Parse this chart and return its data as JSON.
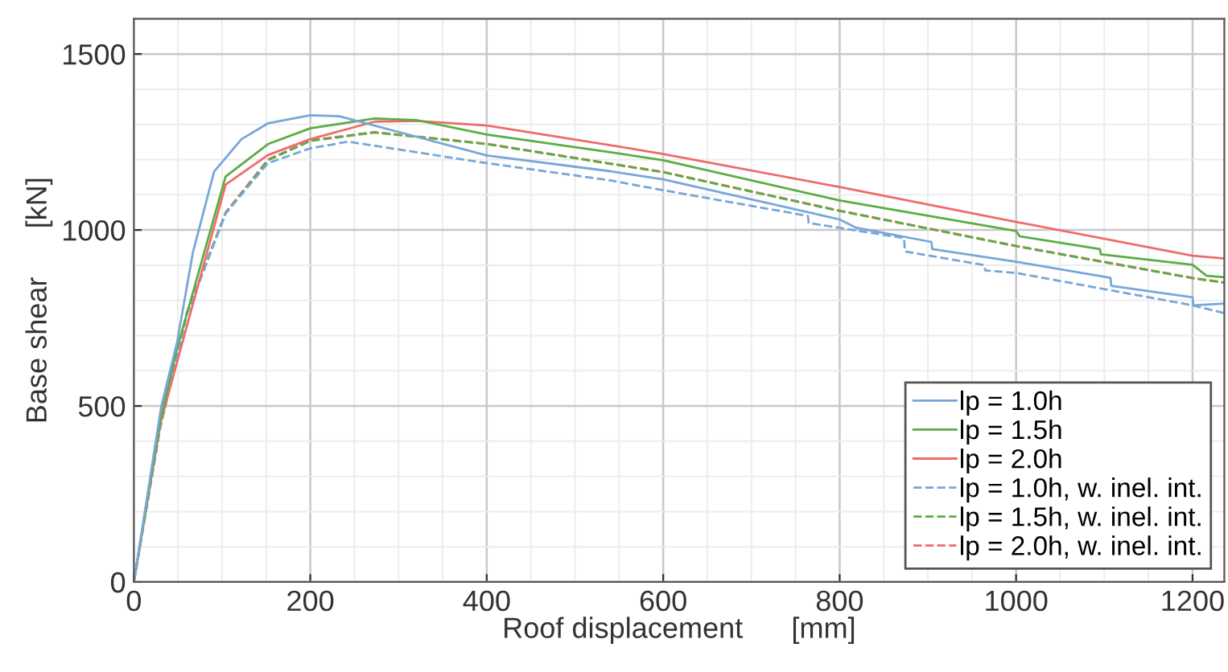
{
  "chart_data": {
    "type": "line",
    "xlabel": "Roof displacement      [mm]",
    "ylabel": "Base shear      [kN]",
    "xlim": [
      0,
      1236
    ],
    "ylim": [
      0,
      1600
    ],
    "xticks": [
      0,
      200,
      400,
      600,
      800,
      1000,
      1200
    ],
    "yticks": [
      0,
      500,
      1000,
      1500
    ],
    "grid": true,
    "legend": "bottom right",
    "series": [
      {
        "name": "lp = 1.0h",
        "color": "#77a7d9",
        "line_style": "solid",
        "x": [
          0,
          31,
          49,
          67,
          91,
          122,
          152,
          200,
          233,
          400,
          540,
          600,
          800,
          818,
          904,
          905,
          1000,
          1107,
          1108,
          1200,
          1201,
          1236
        ],
        "values": [
          0,
          498,
          681,
          937,
          1166,
          1258,
          1303,
          1326,
          1323,
          1212,
          1167,
          1144,
          1030,
          1007,
          966,
          946,
          910,
          864,
          841,
          809,
          786,
          791
        ]
      },
      {
        "name": "lp = 1.5h",
        "color": "#5aad44",
        "line_style": "solid",
        "x": [
          0,
          30,
          49,
          104,
          152,
          200,
          273,
          321,
          400,
          540,
          600,
          800,
          1000,
          1004,
          1095,
          1096,
          1200,
          1216,
          1236
        ],
        "values": [
          0,
          460,
          663,
          1152,
          1244,
          1289,
          1317,
          1312,
          1271,
          1221,
          1198,
          1084,
          997,
          982,
          946,
          931,
          901,
          870,
          866
        ]
      },
      {
        "name": "lp = 2.0h",
        "color": "#ef6b6b",
        "line_style": "solid",
        "x": [
          0,
          30,
          55,
          104,
          152,
          200,
          273,
          320,
          400,
          540,
          600,
          800,
          1000,
          1200,
          1236
        ],
        "values": [
          0,
          450,
          680,
          1129,
          1213,
          1258,
          1308,
          1310,
          1297,
          1241,
          1216,
          1122,
          1023,
          927,
          919
        ]
      },
      {
        "name": "lp = 1.0h, w. inel. int.",
        "color": "#77a7d9",
        "line_style": "dashed",
        "x": [
          0,
          30,
          60,
          104,
          152,
          200,
          243,
          400,
          540,
          600,
          764,
          765,
          873,
          874,
          964,
          965,
          1000,
          1200,
          1236
        ],
        "values": [
          0,
          440,
          760,
          1047,
          1190,
          1232,
          1251,
          1190,
          1141,
          1113,
          1040,
          1020,
          977,
          939,
          900,
          885,
          878,
          786,
          764
        ]
      },
      {
        "name": "lp = 1.5h, w. inel. int.",
        "color": "#5aad44",
        "line_style": "dashed",
        "x": [
          0,
          30,
          60,
          104,
          152,
          200,
          273,
          400,
          540,
          600,
          800,
          1000,
          1200,
          1236
        ],
        "values": [
          0,
          440,
          760,
          1047,
          1198,
          1253,
          1277,
          1244,
          1188,
          1164,
          1054,
          954,
          863,
          850
        ]
      },
      {
        "name": "lp = 2.0h, w. inel. int.",
        "color": "#ef6b6b",
        "line_style": "dashed",
        "x": [
          0,
          30,
          60,
          104,
          152,
          200,
          273,
          400,
          540,
          600,
          800,
          1000,
          1200,
          1236
        ],
        "values": [
          0,
          445,
          765,
          1050,
          1200,
          1255,
          1278,
          1245,
          1189,
          1165,
          1055,
          955,
          864,
          851
        ]
      }
    ]
  }
}
